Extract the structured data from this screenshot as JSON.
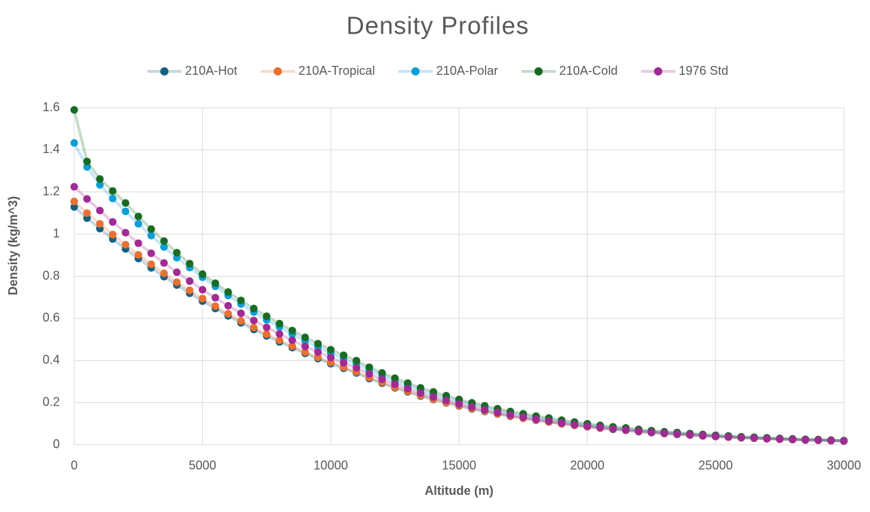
{
  "chart_data": {
    "type": "scatter",
    "title": "Density Profiles",
    "x_label": "Altitude (m)",
    "y_label": "Density (kg/m^3)",
    "legend": "top",
    "grid": true,
    "xlim": [
      0,
      30000
    ],
    "xticks": [
      0,
      5000,
      10000,
      15000,
      20000,
      25000,
      30000
    ],
    "ylim": [
      0,
      1.6
    ],
    "yticks": [
      0,
      0.2,
      0.4,
      0.6,
      0.8,
      1,
      1.2,
      1.4,
      1.6
    ],
    "x": [
      0,
      500,
      1000,
      1500,
      2000,
      2500,
      3000,
      3500,
      4000,
      4500,
      5000,
      5500,
      6000,
      6500,
      7000,
      7500,
      8000,
      8500,
      9000,
      9500,
      10000,
      10500,
      11000,
      11500,
      12000,
      12500,
      13000,
      13500,
      14000,
      14500,
      15000,
      15500,
      16000,
      16500,
      17000,
      17500,
      18000,
      18500,
      19000,
      19500,
      20000,
      20500,
      21000,
      21500,
      22000,
      22500,
      23000,
      23500,
      24000,
      24500,
      25000,
      25500,
      26000,
      26500,
      27000,
      27500,
      28000,
      28500,
      29000,
      29500,
      30000
    ],
    "series": [
      {
        "name": "210A-Hot",
        "color": "#156082",
        "values": [
          1.129,
          1.076,
          1.026,
          0.977,
          0.93,
          0.884,
          0.84,
          0.798,
          0.758,
          0.719,
          0.682,
          0.647,
          0.612,
          0.579,
          0.547,
          0.517,
          0.488,
          0.461,
          0.434,
          0.409,
          0.385,
          0.363,
          0.341,
          0.314,
          0.292,
          0.27,
          0.251,
          0.231,
          0.215,
          0.199,
          0.184,
          0.17,
          0.158,
          0.146,
          0.135,
          0.126,
          0.116,
          0.108,
          0.099,
          0.092,
          0.085,
          0.079,
          0.073,
          0.068,
          0.062,
          0.057,
          0.053,
          0.049,
          0.046,
          0.042,
          0.039,
          0.036,
          0.033,
          0.031,
          0.028,
          0.026,
          0.024,
          0.022,
          0.021,
          0.019,
          0.017
        ]
      },
      {
        "name": "210A-Tropical",
        "color": "#e97132",
        "values": [
          1.155,
          1.1,
          1.049,
          0.998,
          0.95,
          0.902,
          0.857,
          0.814,
          0.772,
          0.733,
          0.694,
          0.658,
          0.622,
          0.588,
          0.556,
          0.525,
          0.496,
          0.468,
          0.44,
          0.415,
          0.391,
          0.368,
          0.346,
          0.319,
          0.296,
          0.273,
          0.254,
          0.234,
          0.217,
          0.201,
          0.186,
          0.172,
          0.16,
          0.147,
          0.136,
          0.126,
          0.117,
          0.108,
          0.1,
          0.092,
          0.086,
          0.079,
          0.074,
          0.069,
          0.063,
          0.058,
          0.054,
          0.05,
          0.046,
          0.042,
          0.039,
          0.036,
          0.033,
          0.031,
          0.028,
          0.026,
          0.025,
          0.023,
          0.022,
          0.02,
          0.018
        ]
      },
      {
        "name": "210A-Polar",
        "color": "#0f9ed5",
        "values": [
          1.433,
          1.319,
          1.234,
          1.169,
          1.108,
          1.049,
          0.993,
          0.939,
          0.888,
          0.841,
          0.795,
          0.752,
          0.709,
          0.668,
          0.63,
          0.593,
          0.559,
          0.525,
          0.493,
          0.463,
          0.435,
          0.409,
          0.384,
          0.354,
          0.328,
          0.303,
          0.281,
          0.259,
          0.24,
          0.222,
          0.206,
          0.19,
          0.177,
          0.163,
          0.151,
          0.14,
          0.13,
          0.12,
          0.111,
          0.102,
          0.095,
          0.087,
          0.081,
          0.075,
          0.069,
          0.063,
          0.059,
          0.055,
          0.05,
          0.046,
          0.043,
          0.039,
          0.036,
          0.034,
          0.031,
          0.029,
          0.026,
          0.024,
          0.023,
          0.021,
          0.019
        ]
      },
      {
        "name": "210A-Cold",
        "color": "#196b24",
        "values": [
          1.59,
          1.345,
          1.262,
          1.205,
          1.148,
          1.084,
          1.024,
          0.967,
          0.912,
          0.86,
          0.81,
          0.767,
          0.725,
          0.685,
          0.647,
          0.61,
          0.575,
          0.542,
          0.51,
          0.48,
          0.451,
          0.425,
          0.399,
          0.368,
          0.341,
          0.316,
          0.293,
          0.27,
          0.251,
          0.233,
          0.215,
          0.199,
          0.185,
          0.171,
          0.158,
          0.147,
          0.136,
          0.127,
          0.117,
          0.108,
          0.1,
          0.092,
          0.085,
          0.08,
          0.073,
          0.067,
          0.062,
          0.058,
          0.053,
          0.049,
          0.045,
          0.042,
          0.038,
          0.036,
          0.033,
          0.03,
          0.028,
          0.026,
          0.025,
          0.022,
          0.02
        ]
      },
      {
        "name": "1976 Std",
        "color": "#a02b93",
        "values": [
          1.225,
          1.167,
          1.112,
          1.058,
          1.007,
          0.957,
          0.909,
          0.863,
          0.819,
          0.777,
          0.736,
          0.698,
          0.66,
          0.624,
          0.59,
          0.557,
          0.526,
          0.496,
          0.467,
          0.44,
          0.414,
          0.389,
          0.365,
          0.336,
          0.311,
          0.287,
          0.266,
          0.245,
          0.227,
          0.21,
          0.194,
          0.179,
          0.166,
          0.153,
          0.141,
          0.131,
          0.121,
          0.112,
          0.103,
          0.095,
          0.088,
          0.081,
          0.075,
          0.07,
          0.064,
          0.059,
          0.055,
          0.051,
          0.047,
          0.043,
          0.04,
          0.037,
          0.034,
          0.032,
          0.029,
          0.027,
          0.025,
          0.023,
          0.022,
          0.02,
          0.018
        ]
      }
    ]
  }
}
